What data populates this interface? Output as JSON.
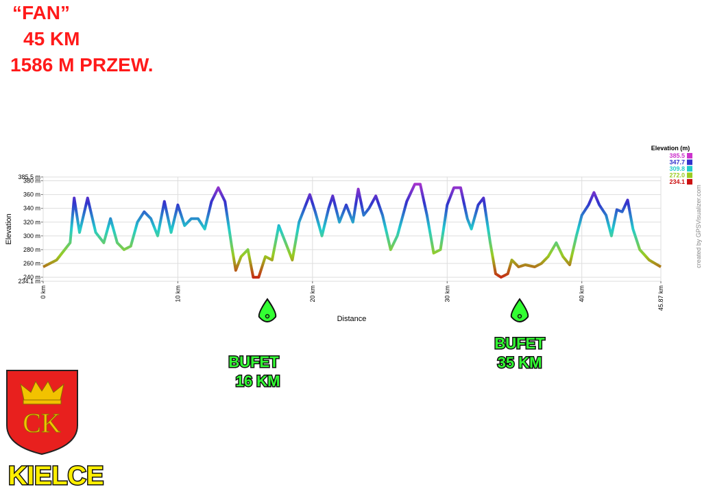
{
  "chart_data": {
    "type": "line",
    "title_lines": [
      "“FAN”",
      "45 KM",
      "1586 M PRZEW."
    ],
    "ylabel": "Elevation",
    "xlabel": "Distance",
    "credit": "created by GPSVisualizer.com",
    "legend_title": "Elevation (m)",
    "legend": [
      {
        "label": "385.5",
        "value": 385.5,
        "color": "#cc33cc"
      },
      {
        "label": "347.7",
        "value": 347.7,
        "color": "#3333cc"
      },
      {
        "label": "309.8",
        "value": 309.8,
        "color": "#22cccc"
      },
      {
        "label": "272.0",
        "value": 272.0,
        "color": "#99cc22"
      },
      {
        "label": "234.1",
        "value": 234.1,
        "color": "#cc1111"
      }
    ],
    "xlim": [
      0,
      45.87
    ],
    "ylim": [
      234.1,
      385.5
    ],
    "xticks": [
      {
        "value": 0,
        "label": "0 km"
      },
      {
        "value": 10,
        "label": "10 km"
      },
      {
        "value": 20,
        "label": "20 km"
      },
      {
        "value": 30,
        "label": "30 km"
      },
      {
        "value": 40,
        "label": "40 km"
      },
      {
        "value": 45.87,
        "label": "45.87 km"
      }
    ],
    "yticks": [
      {
        "value": 234.1,
        "label": "234.1 m"
      },
      {
        "value": 240,
        "label": "240 m"
      },
      {
        "value": 260,
        "label": "260 m"
      },
      {
        "value": 280,
        "label": "280 m"
      },
      {
        "value": 300,
        "label": "300 m"
      },
      {
        "value": 320,
        "label": "320 m"
      },
      {
        "value": 340,
        "label": "340 m"
      },
      {
        "value": 360,
        "label": "360 m"
      },
      {
        "value": 380,
        "label": "380 m"
      },
      {
        "value": 385.5,
        "label": "385.5 m"
      }
    ],
    "grid": true,
    "series": [
      {
        "name": "Elevation",
        "x": [
          0,
          1,
          2,
          2.3,
          2.7,
          3.3,
          3.9,
          4.5,
          5,
          5.5,
          6,
          6.5,
          7,
          7.5,
          8,
          8.5,
          9,
          9.5,
          10,
          10.5,
          11,
          11.5,
          12,
          12.5,
          13,
          13.5,
          14,
          14.3,
          14.7,
          15.2,
          15.6,
          16,
          16.5,
          17,
          17.5,
          18,
          18.5,
          19,
          19.5,
          19.8,
          20.2,
          20.7,
          21.2,
          21.5,
          22,
          22.5,
          23,
          23.4,
          23.8,
          24.2,
          24.7,
          25.2,
          25.8,
          26.3,
          27,
          27.6,
          28,
          28.5,
          29,
          29.5,
          30,
          30.5,
          31,
          31.5,
          31.8,
          32.3,
          32.7,
          33.2,
          33.6,
          34,
          34.5,
          34.8,
          35.3,
          35.8,
          36.5,
          37,
          37.5,
          38.1,
          38.6,
          39.1,
          39.6,
          40,
          40.5,
          40.9,
          41.3,
          41.8,
          42.2,
          42.6,
          43,
          43.4,
          43.8,
          44.3,
          45,
          45.87
        ],
        "values": [
          255,
          265,
          290,
          355,
          305,
          355,
          305,
          290,
          325,
          290,
          280,
          285,
          320,
          335,
          325,
          300,
          350,
          305,
          345,
          315,
          325,
          325,
          310,
          350,
          370,
          350,
          285,
          250,
          270,
          280,
          240,
          240,
          270,
          265,
          315,
          290,
          265,
          320,
          345,
          360,
          335,
          300,
          340,
          358,
          320,
          345,
          320,
          368,
          330,
          340,
          358,
          330,
          280,
          300,
          350,
          375,
          375,
          330,
          275,
          280,
          345,
          370,
          370,
          325,
          310,
          345,
          355,
          290,
          245,
          240,
          245,
          265,
          255,
          258,
          255,
          260,
          270,
          290,
          270,
          258,
          300,
          330,
          345,
          363,
          345,
          330,
          300,
          338,
          335,
          352,
          310,
          280,
          265,
          255
        ]
      }
    ],
    "annotations": [
      {
        "lines": [
          "BUFET",
          "16 KM"
        ]
      },
      {
        "lines": [
          "BUFET",
          "35 KM"
        ]
      }
    ],
    "logo_text": "CK",
    "city": "KIELCE"
  }
}
